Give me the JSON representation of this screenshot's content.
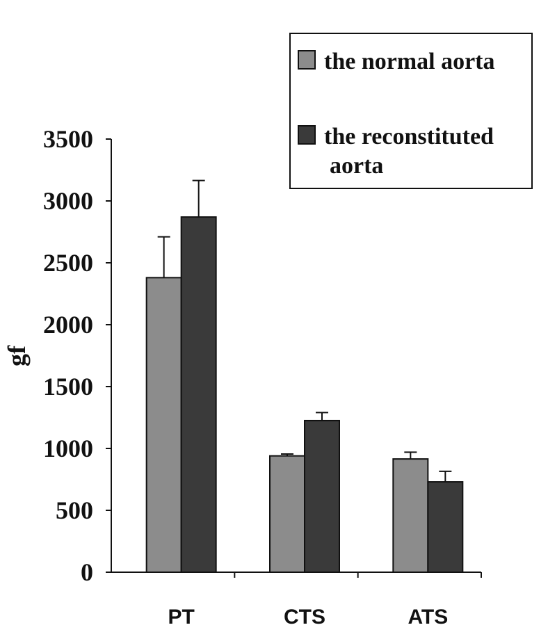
{
  "chart_data": {
    "type": "bar",
    "categories": [
      "PT",
      "CTS",
      "ATS"
    ],
    "series": [
      {
        "name": "the normal aorta",
        "legend_lines": [
          "the normal aorta"
        ],
        "color": "#8c8c8c",
        "values": [
          2380,
          940,
          915
        ],
        "errors": [
          330,
          15,
          55
        ]
      },
      {
        "name": "the reconstituted aorta",
        "legend_lines": [
          "the reconstituted",
          "aorta"
        ],
        "color": "#3a3a3a",
        "values": [
          2870,
          1225,
          730
        ],
        "errors": [
          295,
          65,
          85
        ]
      }
    ],
    "title": "",
    "xlabel": "",
    "ylabel": "gf",
    "ylim": [
      0,
      3500
    ],
    "yticks": [
      0,
      500,
      1000,
      1500,
      2000,
      2500,
      3000,
      3500
    ],
    "grid": false,
    "legend_position": "top-right"
  }
}
